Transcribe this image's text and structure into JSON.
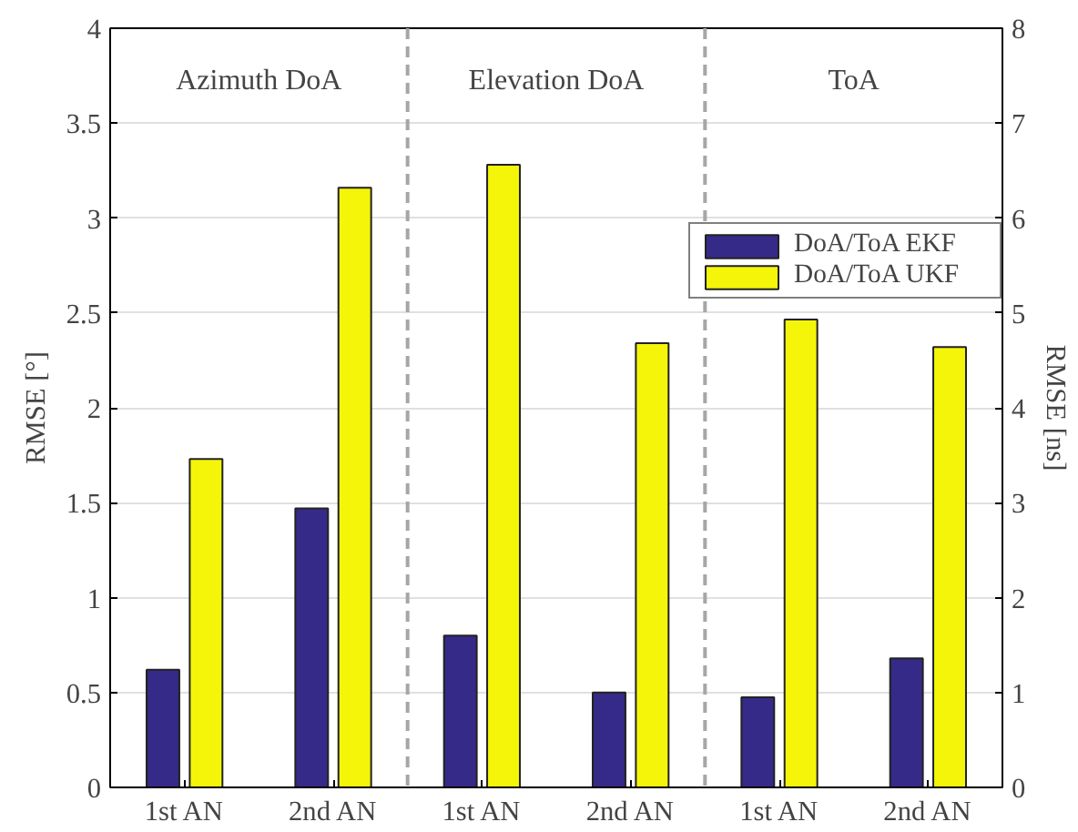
{
  "chart_data": {
    "type": "bar",
    "ylabel": "RMSE [°]",
    "y2label": "RMSE [ns]",
    "categories": [
      "1st AN",
      "2nd AN",
      "1st AN",
      "2nd AN",
      "1st AN",
      "2nd AN"
    ],
    "ylim": [
      0,
      4
    ],
    "yticks": [
      0,
      0.5,
      1,
      1.5,
      2,
      2.5,
      3,
      3.5,
      4
    ],
    "y2lim": [
      0,
      8
    ],
    "y2ticks": [
      0,
      1,
      2,
      3,
      4,
      5,
      6,
      7,
      8
    ],
    "series": [
      {
        "name": "DoA/ToA EKF",
        "color": "#352a87",
        "values": [
          0.62,
          1.47,
          0.8,
          0.5,
          null,
          null
        ]
      },
      {
        "name": "DoA/ToA UKF",
        "color": "#f5f50a",
        "values": [
          1.73,
          3.16,
          3.28,
          2.34,
          null,
          null
        ]
      },
      {
        "color": "#352a87",
        "axis": "y2",
        "values": [
          null,
          null,
          null,
          null,
          0.95,
          1.36
        ]
      },
      {
        "color": "#f5f50a",
        "axis": "y2",
        "values": [
          null,
          null,
          null,
          null,
          4.93,
          4.64
        ]
      }
    ],
    "annotations": [
      "Azimuth DoA",
      "Elevation DoA",
      "ToA"
    ],
    "grid": "y",
    "legend": "top right"
  }
}
